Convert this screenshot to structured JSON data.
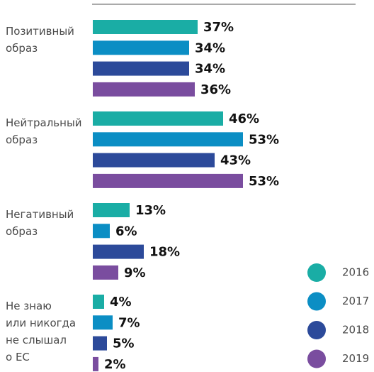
{
  "chart_data": {
    "type": "bar",
    "orientation": "horizontal",
    "categories": [
      "Позитивный\nобраз",
      "Нейтральный\nобраз",
      "Негативный\nобраз",
      "Не знаю\nили никогда\nне слышал\nо ЕС"
    ],
    "series": [
      {
        "name": "2016",
        "color": "#1aada5",
        "values": [
          37,
          46,
          13,
          4
        ],
        "value_labels": [
          "37%",
          "46%",
          "13%",
          "4%"
        ]
      },
      {
        "name": "2017",
        "color": "#0b8ec4",
        "values": [
          34,
          53,
          6,
          7
        ],
        "value_labels": [
          "34%",
          "53%",
          "6%",
          "7%"
        ]
      },
      {
        "name": "2018",
        "color": "#2c4a9a",
        "values": [
          34,
          43,
          18,
          5
        ],
        "value_labels": [
          "34%",
          "43%",
          "18%",
          "5%"
        ]
      },
      {
        "name": "2019",
        "color": "#7a4d9f",
        "values": [
          36,
          53,
          9,
          2
        ],
        "value_labels": [
          "36%",
          "53%",
          "9%",
          "2%"
        ]
      }
    ],
    "xlim": [
      0,
      90
    ]
  }
}
